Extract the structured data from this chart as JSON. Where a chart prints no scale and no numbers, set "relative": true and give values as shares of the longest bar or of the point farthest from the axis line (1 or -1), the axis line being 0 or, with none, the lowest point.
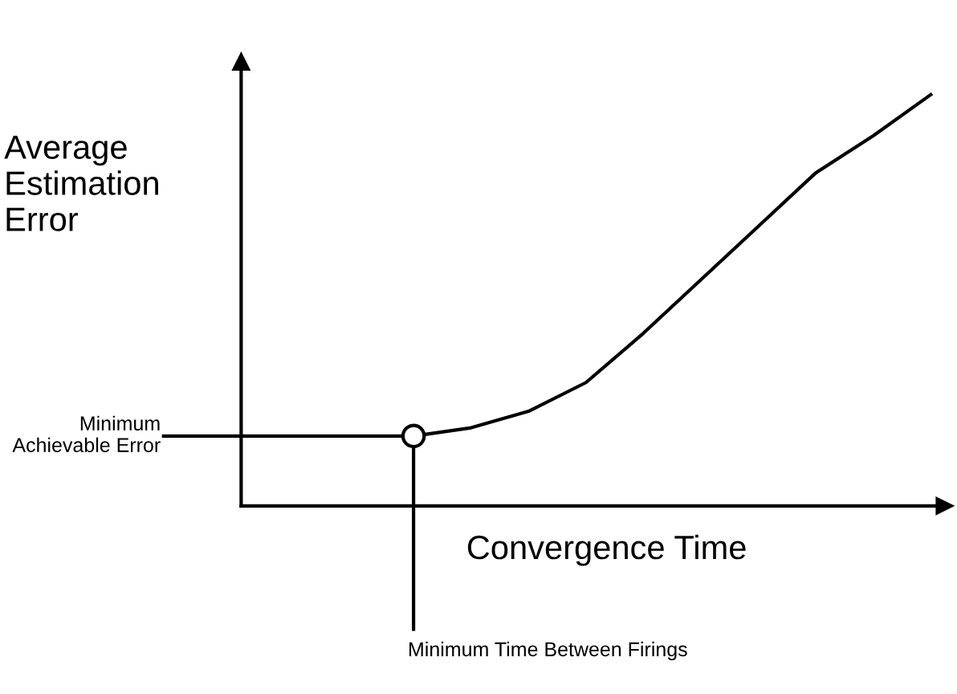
{
  "chart_data": {
    "type": "line",
    "relative": true,
    "xlabel": "Convergence Time",
    "ylabel": "Average Estimation Error",
    "categories": [
      null,
      null,
      null,
      null,
      null,
      null,
      null,
      null,
      null,
      null,
      null,
      null,
      null
    ],
    "series": [
      {
        "type": "line",
        "color": "#000000",
        "values": [
          0.17,
          0.17,
          0.17,
          0.17,
          0.19,
          0.23,
          0.3,
          0.42,
          0.55,
          0.68,
          0.81,
          0.9,
          1.0
        ]
      }
    ],
    "annotations": [
      "Minimum Achievable Error",
      "Minimum Time Between Firings"
    ],
    "grid": false,
    "legend": false
  }
}
